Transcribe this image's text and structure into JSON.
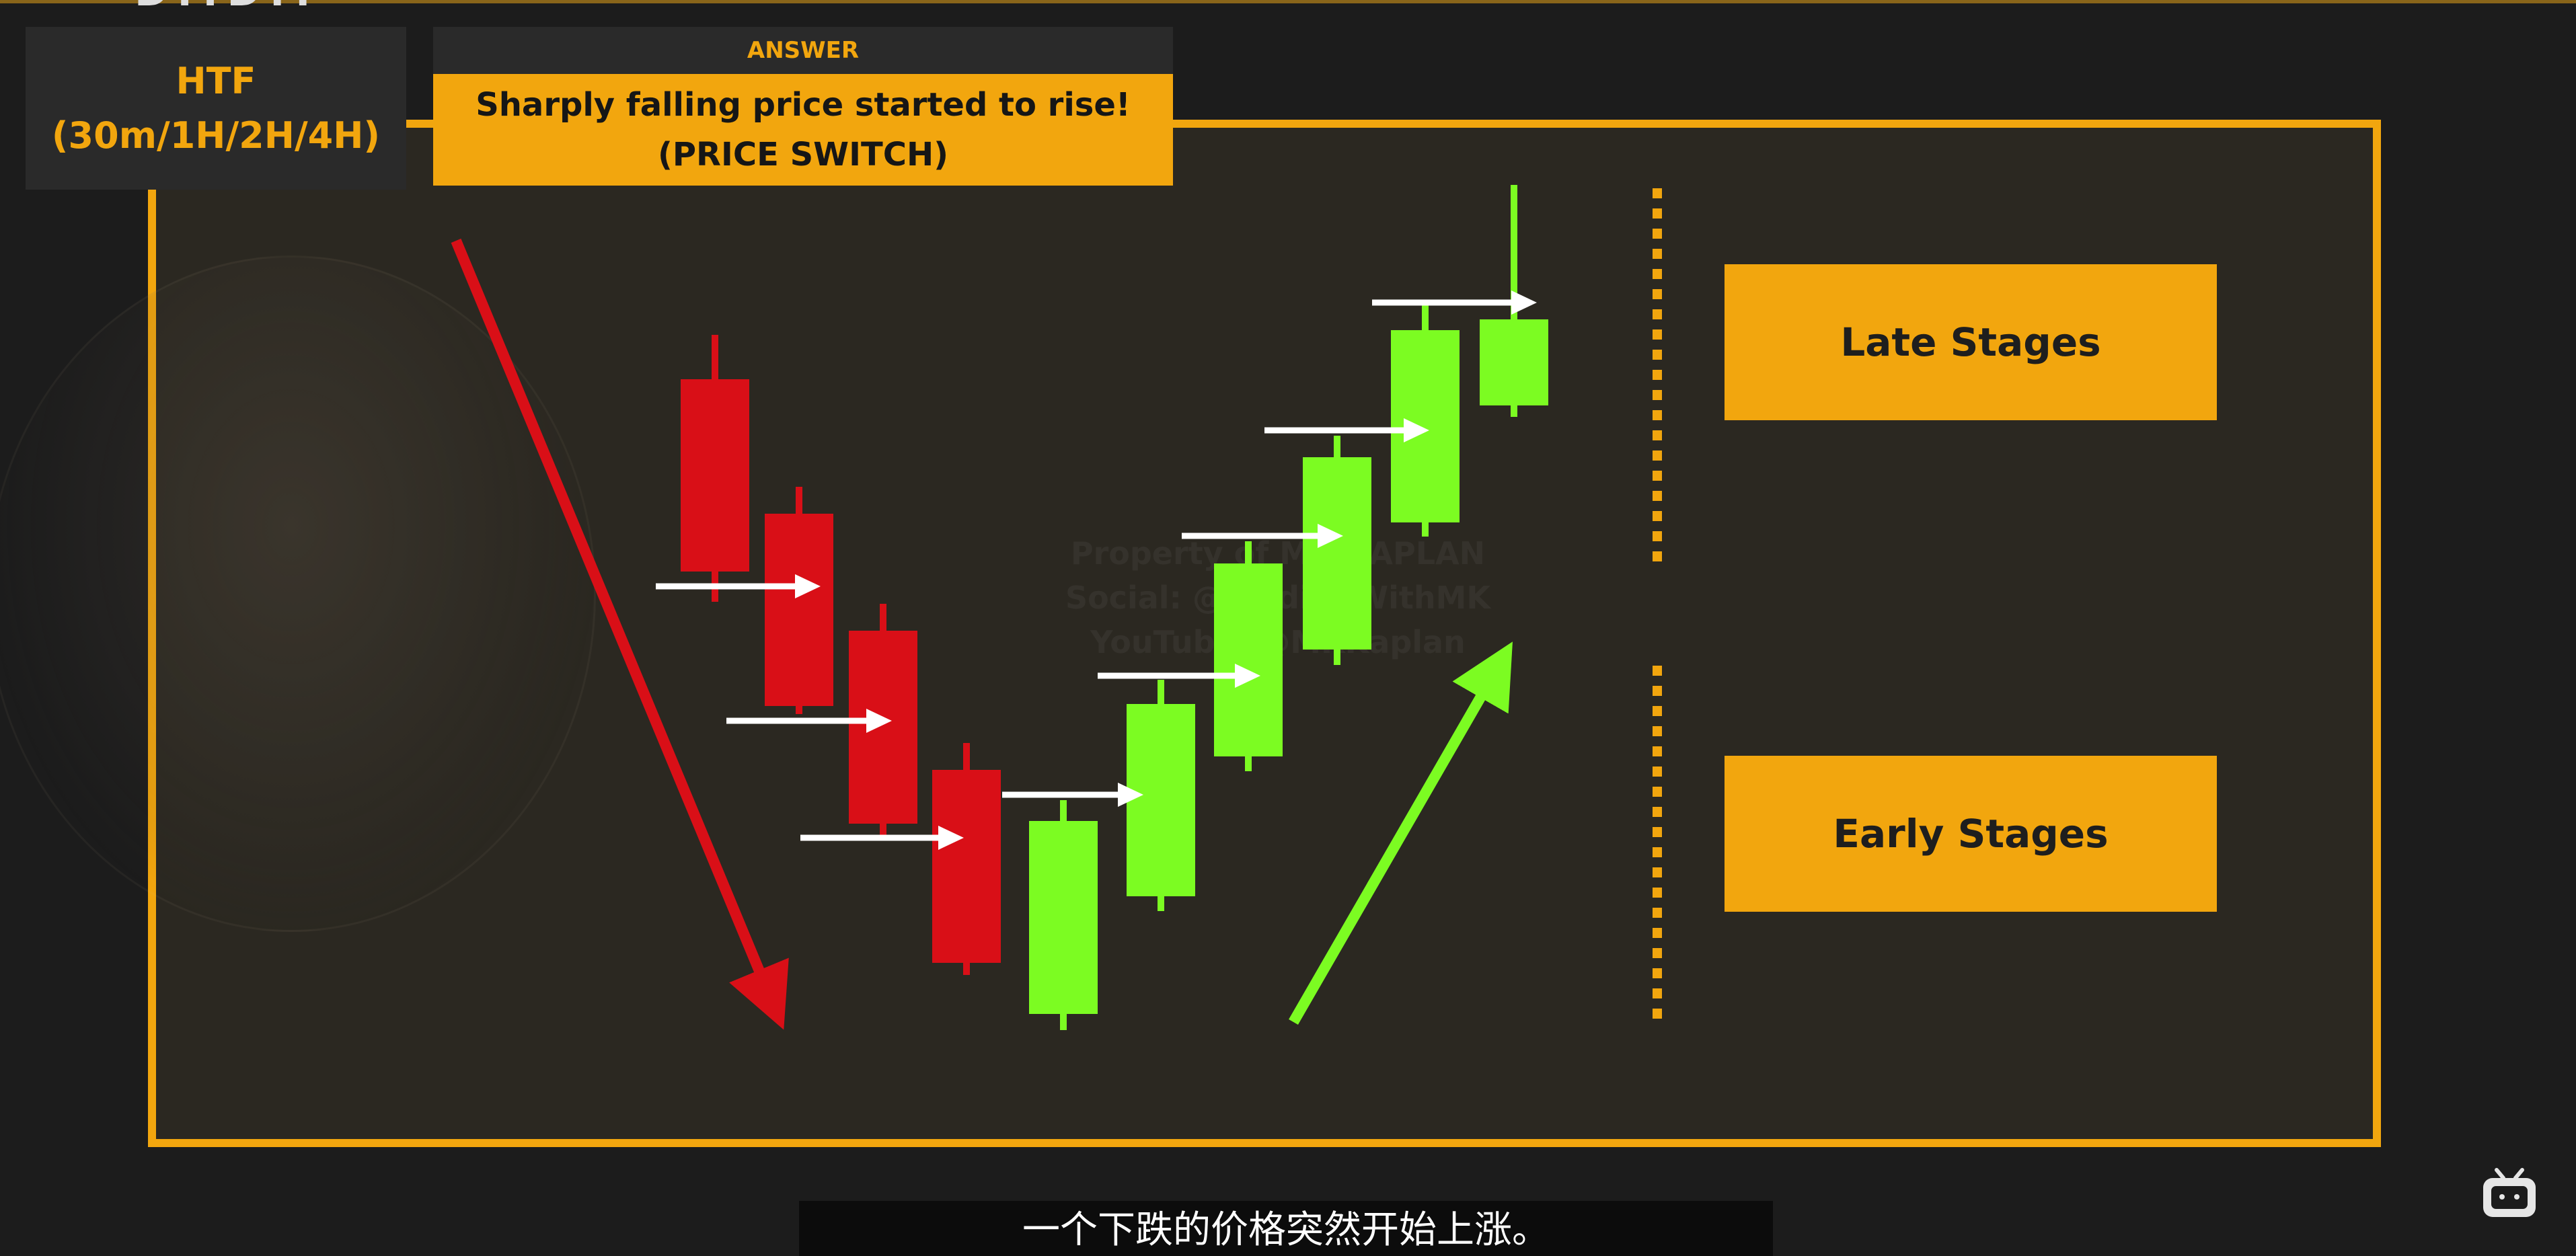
{
  "colors": {
    "accent": "#f2a60e",
    "bearish": "#d90f17",
    "bullish": "#7cfc22",
    "arrow": "#ffffff",
    "background": "#1c1c1c",
    "frame_fill": "#2b2821"
  },
  "header": {
    "logo_text": "DMDM",
    "timeframe_title": "HTF",
    "timeframe_values": "(30m/1H/2H/4H)"
  },
  "answer": {
    "label": "ANSWER",
    "line1": "Sharply falling price started to rise!",
    "line2": "(PRICE SWITCH)"
  },
  "stages": {
    "late": "Late Stages",
    "early": "Early Stages"
  },
  "watermark": {
    "line1": "Property of MK KAPLAN",
    "line2": "Social: @TradingWithMK",
    "line3": "YouTube: @MKKaplan"
  },
  "subtitle": "一个下跌的价格突然开始上涨。",
  "icons": {
    "trend_down": "arrow-down-right-icon",
    "trend_up": "arrow-up-right-icon",
    "player": "tv-logo-icon"
  },
  "chart_data": {
    "type": "candlestick",
    "candles": [
      {
        "color": "bearish",
        "open": 850,
        "close": 564,
        "high": 895,
        "low": 498
      },
      {
        "color": "bearish",
        "open": 1050,
        "close": 764,
        "high": 1062,
        "low": 724
      },
      {
        "color": "bearish",
        "open": 1225,
        "close": 938,
        "high": 1250,
        "low": 898
      },
      {
        "color": "bearish",
        "open": 1432,
        "close": 1145,
        "high": 1450,
        "low": 1105
      },
      {
        "color": "bullish",
        "open": 1508,
        "close": 1221,
        "high": 1532,
        "low": 1190
      },
      {
        "color": "bullish",
        "open": 1333,
        "close": 1047,
        "high": 1355,
        "low": 1011
      },
      {
        "color": "bullish",
        "open": 1125,
        "close": 838,
        "high": 1147,
        "low": 805
      },
      {
        "color": "bullish",
        "open": 966,
        "close": 680,
        "high": 989,
        "low": 648
      },
      {
        "color": "bullish",
        "open": 777,
        "close": 491,
        "high": 798,
        "low": 453
      },
      {
        "color": "bullish",
        "open": 603,
        "close": 475,
        "high": 620,
        "low": 275
      }
    ],
    "arrows": [
      {
        "level": 872
      },
      {
        "level": 1072
      },
      {
        "level": 1246
      },
      {
        "level": 1182
      },
      {
        "level": 1005
      },
      {
        "level": 797
      },
      {
        "level": 640
      },
      {
        "level": 450
      }
    ]
  }
}
